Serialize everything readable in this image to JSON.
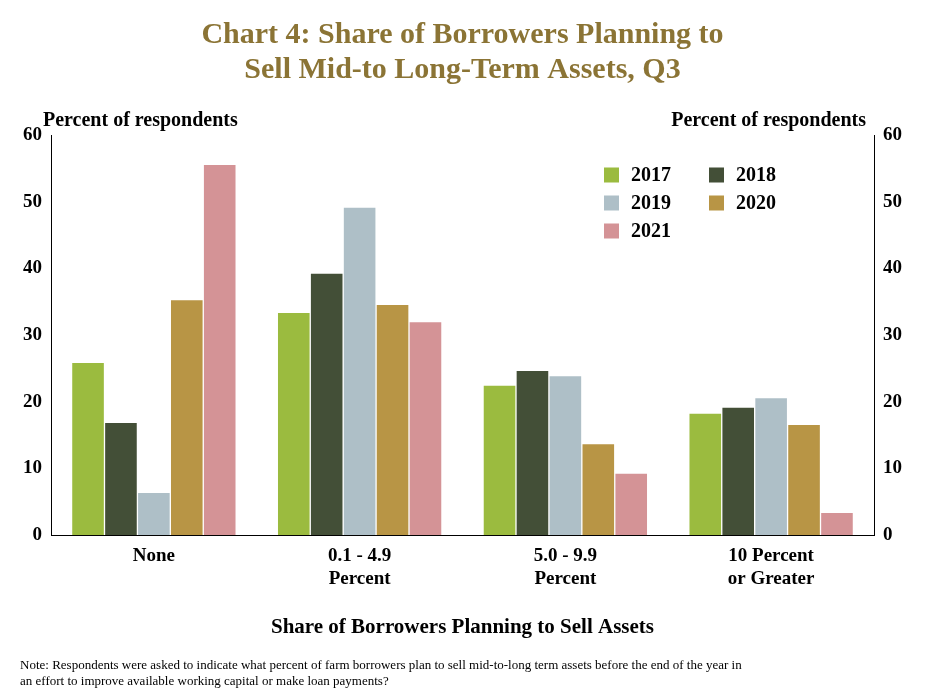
{
  "chart_data": {
    "type": "bar",
    "title": "Chart 4: Share of Borrowers Planning to Sell Mid-to Long-Term Assets, Q3",
    "ylabel": "Percent of respondents",
    "y2label": "Percent of respondents",
    "xlabel": "Share of Borrowers Planning to Sell Assets",
    "note": "Note: Respondents were asked to indicate what percent of farm borrowers plan to sell mid-to-long term assets before the end of the year in an effort to improve available working capital or make loan payments?",
    "categories": [
      "None",
      "0.1 - 4.9 Percent",
      "5.0 - 9.9 Percent",
      "10 Percent or Greater"
    ],
    "series": [
      {
        "name": "2017",
        "color": "#9bbb3f",
        "values": [
          25.8,
          33.3,
          22.4,
          18.2
        ]
      },
      {
        "name": "2018",
        "color": "#434f37",
        "values": [
          16.8,
          39.2,
          24.6,
          19.1
        ]
      },
      {
        "name": "2019",
        "color": "#aebfc7",
        "values": [
          6.3,
          49.1,
          23.8,
          20.5
        ]
      },
      {
        "name": "2020",
        "color": "#b89545",
        "values": [
          35.2,
          34.5,
          13.6,
          16.5
        ]
      },
      {
        "name": "2021",
        "color": "#d49396",
        "values": [
          55.5,
          31.9,
          9.2,
          3.3
        ]
      }
    ],
    "ylim": [
      0,
      60
    ],
    "yticks": [
      0,
      10,
      20,
      30,
      40,
      50,
      60
    ],
    "y2lim": [
      0,
      60
    ],
    "y2ticks": [
      0,
      10,
      20,
      30,
      40,
      50,
      60
    ],
    "grid": false,
    "legend": "upper right"
  }
}
